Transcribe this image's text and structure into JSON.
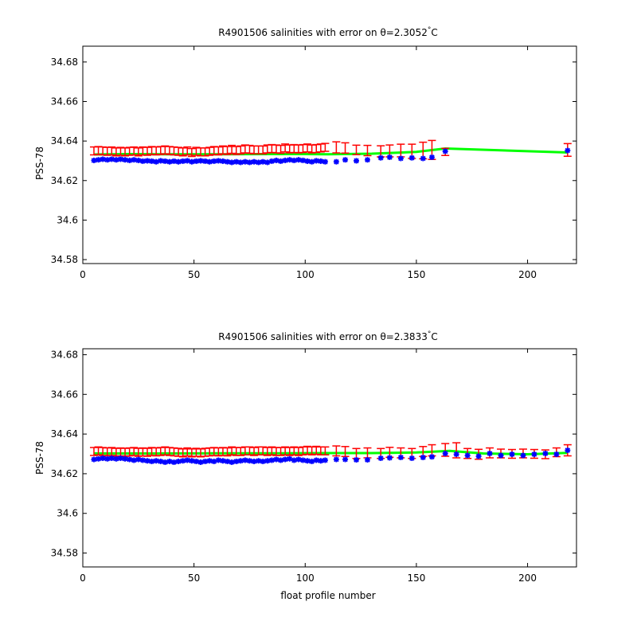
{
  "figure": {
    "xlabel": "float profile number"
  },
  "colors": {
    "mapped": "#ff0000",
    "float": "#0000ff",
    "calibrated": "#00ff00",
    "axis": "#000000"
  },
  "chart_data": [
    {
      "type": "scatter",
      "title": "R4901506 salinities with error on θ=2.3052°C",
      "title_main": "R4901506 salinities with error on θ=2.3052",
      "title_deg": "°",
      "title_unit": "C",
      "xlabel": "",
      "ylabel": "PSS-78",
      "xlim": [
        0,
        222
      ],
      "ylim": [
        34.578,
        34.688
      ],
      "xticks": [
        0,
        50,
        100,
        150,
        200
      ],
      "yticks": [
        34.58,
        34.6,
        34.62,
        34.64,
        34.66,
        34.68
      ],
      "ytick_labels": [
        "34.58",
        "34.6",
        "34.62",
        "34.64",
        "34.66",
        "34.68"
      ],
      "calibrated_line": {
        "x": [
          5,
          20,
          40,
          60,
          80,
          100,
          110,
          130,
          150,
          163,
          218
        ],
        "y": [
          34.6332,
          34.6334,
          34.6333,
          34.6333,
          34.6334,
          34.6334,
          34.6333,
          34.6336,
          34.6345,
          34.6362,
          34.6342
        ]
      },
      "series": [
        {
          "name_role": "mapped",
          "marker": "errorbar",
          "x": [
            5,
            7,
            9,
            11,
            13,
            15,
            17,
            19,
            21,
            23,
            25,
            27,
            29,
            31,
            33,
            35,
            37,
            39,
            41,
            43,
            45,
            47,
            49,
            51,
            53,
            55,
            57,
            59,
            61,
            63,
            65,
            67,
            69,
            71,
            73,
            75,
            77,
            79,
            81,
            83,
            85,
            87,
            89,
            91,
            93,
            95,
            97,
            99,
            101,
            103,
            105,
            107,
            109,
            114,
            118,
            123,
            128,
            134,
            138,
            143,
            148,
            153,
            157,
            163,
            218
          ],
          "y": [
            34.635,
            34.6352,
            34.635,
            34.6348,
            34.635,
            34.6345,
            34.6348,
            34.6345,
            34.6348,
            34.635,
            34.6345,
            34.635,
            34.6348,
            34.6352,
            34.635,
            34.6352,
            34.6355,
            34.6352,
            34.635,
            34.6348,
            34.6345,
            34.635,
            34.6342,
            34.6348,
            34.6345,
            34.6345,
            34.6348,
            34.6352,
            34.635,
            34.6355,
            34.6352,
            34.6358,
            34.6352,
            34.6355,
            34.636,
            34.6358,
            34.6355,
            34.6355,
            34.6355,
            34.636,
            34.6362,
            34.636,
            34.6358,
            34.6365,
            34.636,
            34.6362,
            34.636,
            34.6362,
            34.6365,
            34.636,
            34.6362,
            34.6365,
            34.6368,
            34.6368,
            34.6365,
            34.6355,
            34.6352,
            34.6348,
            34.635,
            34.6352,
            34.6348,
            34.6352,
            34.6355,
            34.6345,
            34.6355
          ],
          "err": [
            0.002,
            0.002,
            0.002,
            0.002,
            0.002,
            0.002,
            0.002,
            0.002,
            0.002,
            0.002,
            0.002,
            0.002,
            0.002,
            0.002,
            0.002,
            0.002,
            0.002,
            0.002,
            0.002,
            0.002,
            0.002,
            0.002,
            0.002,
            0.002,
            0.002,
            0.002,
            0.002,
            0.002,
            0.002,
            0.002,
            0.002,
            0.002,
            0.002,
            0.002,
            0.002,
            0.002,
            0.002,
            0.002,
            0.002,
            0.002,
            0.002,
            0.002,
            0.002,
            0.002,
            0.002,
            0.002,
            0.002,
            0.002,
            0.002,
            0.002,
            0.002,
            0.002,
            0.002,
            0.0028,
            0.0026,
            0.0024,
            0.0026,
            0.0028,
            0.003,
            0.0032,
            0.0036,
            0.0042,
            0.0048,
            0.0018,
            0.0032
          ]
        },
        {
          "name_role": "float",
          "marker": "star",
          "x": [
            5,
            7,
            9,
            11,
            13,
            15,
            17,
            19,
            21,
            23,
            25,
            27,
            29,
            31,
            33,
            35,
            37,
            39,
            41,
            43,
            45,
            47,
            49,
            51,
            53,
            55,
            57,
            59,
            61,
            63,
            65,
            67,
            69,
            71,
            73,
            75,
            77,
            79,
            81,
            83,
            85,
            87,
            89,
            91,
            93,
            95,
            97,
            99,
            101,
            103,
            105,
            107,
            109,
            114,
            118,
            123,
            128,
            134,
            138,
            143,
            148,
            153,
            157,
            163,
            218
          ],
          "y": [
            34.6302,
            34.6305,
            34.6308,
            34.6305,
            34.6308,
            34.6305,
            34.6308,
            34.6305,
            34.6302,
            34.6305,
            34.6302,
            34.6298,
            34.63,
            34.6298,
            34.6295,
            34.63,
            34.6298,
            34.6295,
            34.6298,
            34.6295,
            34.6298,
            34.63,
            34.6295,
            34.6298,
            34.63,
            34.6298,
            34.6295,
            34.6298,
            34.63,
            34.6298,
            34.6295,
            34.6292,
            34.6295,
            34.6292,
            34.6295,
            34.6292,
            34.6295,
            34.6292,
            34.6295,
            34.6292,
            34.6298,
            34.6302,
            34.6298,
            34.6302,
            34.6305,
            34.6302,
            34.6305,
            34.6302,
            34.6298,
            34.6295,
            34.63,
            34.6298,
            34.6295,
            34.6295,
            34.6305,
            34.63,
            34.6305,
            34.6315,
            34.6318,
            34.6312,
            34.6315,
            34.6312,
            34.6318,
            34.6348,
            34.6352
          ]
        }
      ]
    },
    {
      "type": "scatter",
      "title": "R4901506 salinities with error on θ=2.3833°C",
      "title_main": "R4901506 salinities with error on θ=2.3833",
      "title_deg": "°",
      "title_unit": "C",
      "xlabel": "float profile number",
      "ylabel": "PSS-78",
      "xlim": [
        0,
        222
      ],
      "ylim": [
        34.573,
        34.683
      ],
      "xticks": [
        0,
        50,
        100,
        150,
        200
      ],
      "yticks": [
        34.58,
        34.6,
        34.62,
        34.64,
        34.66,
        34.68
      ],
      "ytick_labels": [
        "34.58",
        "34.6",
        "34.62",
        "34.64",
        "34.66",
        "34.68"
      ],
      "calibrated_line": {
        "x": [
          5,
          30,
          60,
          90,
          110,
          130,
          150,
          165,
          180,
          200,
          218
        ],
        "y": [
          34.6302,
          34.6302,
          34.6303,
          34.6303,
          34.6304,
          34.6304,
          34.6307,
          34.6315,
          34.6302,
          34.6298,
          34.6305
        ]
      },
      "series": [
        {
          "name_role": "mapped",
          "marker": "errorbar",
          "x": [
            5,
            7,
            9,
            11,
            13,
            15,
            17,
            19,
            21,
            23,
            25,
            27,
            29,
            31,
            33,
            35,
            37,
            39,
            41,
            43,
            45,
            47,
            49,
            51,
            53,
            55,
            57,
            59,
            61,
            63,
            65,
            67,
            69,
            71,
            73,
            75,
            77,
            79,
            81,
            83,
            85,
            87,
            89,
            91,
            93,
            95,
            97,
            99,
            101,
            103,
            105,
            107,
            109,
            114,
            118,
            123,
            128,
            134,
            138,
            143,
            148,
            153,
            157,
            163,
            168,
            173,
            178,
            183,
            188,
            193,
            198,
            203,
            208,
            213,
            218
          ],
          "y": [
            34.6312,
            34.6315,
            34.6312,
            34.631,
            34.6312,
            34.6308,
            34.631,
            34.6308,
            34.631,
            34.6312,
            34.6308,
            34.631,
            34.6308,
            34.6312,
            34.631,
            34.6312,
            34.6315,
            34.6312,
            34.631,
            34.6308,
            34.6305,
            34.631,
            34.6305,
            34.6308,
            34.6305,
            34.6308,
            34.631,
            34.6312,
            34.631,
            34.6312,
            34.631,
            34.6315,
            34.6312,
            34.6312,
            34.6315,
            34.6315,
            34.6312,
            34.6315,
            34.6315,
            34.6312,
            34.6315,
            34.6312,
            34.6312,
            34.6315,
            34.6312,
            34.6315,
            34.6312,
            34.6315,
            34.6318,
            34.6315,
            34.6318,
            34.6315,
            34.6315,
            34.6315,
            34.6312,
            34.6302,
            34.6305,
            34.6302,
            34.6308,
            34.6305,
            34.6302,
            34.6312,
            34.6318,
            34.632,
            34.6318,
            34.6302,
            34.6298,
            34.6305,
            34.6302,
            34.63,
            34.6302,
            34.63,
            34.6298,
            34.6308,
            34.6318
          ],
          "err": [
            0.002,
            0.002,
            0.002,
            0.002,
            0.002,
            0.002,
            0.002,
            0.002,
            0.002,
            0.002,
            0.002,
            0.002,
            0.002,
            0.002,
            0.002,
            0.002,
            0.002,
            0.002,
            0.002,
            0.002,
            0.002,
            0.002,
            0.002,
            0.002,
            0.002,
            0.002,
            0.002,
            0.002,
            0.002,
            0.002,
            0.002,
            0.002,
            0.002,
            0.002,
            0.002,
            0.002,
            0.002,
            0.002,
            0.002,
            0.002,
            0.002,
            0.002,
            0.002,
            0.002,
            0.002,
            0.002,
            0.002,
            0.002,
            0.002,
            0.002,
            0.002,
            0.002,
            0.002,
            0.0025,
            0.0025,
            0.0025,
            0.0025,
            0.0025,
            0.0025,
            0.0025,
            0.0025,
            0.0025,
            0.0028,
            0.0032,
            0.0038,
            0.0025,
            0.0025,
            0.0025,
            0.0022,
            0.0022,
            0.0022,
            0.0022,
            0.0022,
            0.0022,
            0.0028
          ]
        },
        {
          "name_role": "float",
          "marker": "star",
          "x": [
            5,
            7,
            9,
            11,
            13,
            15,
            17,
            19,
            21,
            23,
            25,
            27,
            29,
            31,
            33,
            35,
            37,
            39,
            41,
            43,
            45,
            47,
            49,
            51,
            53,
            55,
            57,
            59,
            61,
            63,
            65,
            67,
            69,
            71,
            73,
            75,
            77,
            79,
            81,
            83,
            85,
            87,
            89,
            91,
            93,
            95,
            97,
            99,
            101,
            103,
            105,
            107,
            109,
            114,
            118,
            123,
            128,
            134,
            138,
            143,
            148,
            153,
            157,
            163,
            168,
            173,
            178,
            183,
            188,
            193,
            198,
            203,
            208,
            213,
            218
          ],
          "y": [
            34.6272,
            34.6275,
            34.6278,
            34.6275,
            34.6278,
            34.6275,
            34.6278,
            34.6275,
            34.6272,
            34.6268,
            34.6272,
            34.6268,
            34.6265,
            34.6262,
            34.6265,
            34.6262,
            34.6258,
            34.6262,
            34.6258,
            34.6262,
            34.6265,
            34.6268,
            34.6265,
            34.6262,
            34.6258,
            34.6262,
            34.6265,
            34.6262,
            34.6268,
            34.6265,
            34.6262,
            34.6258,
            34.6262,
            34.6265,
            34.6268,
            34.6265,
            34.6262,
            34.6265,
            34.6262,
            34.6265,
            34.6268,
            34.6272,
            34.6268,
            34.6272,
            34.6275,
            34.6268,
            34.6272,
            34.6268,
            34.6265,
            34.6262,
            34.6268,
            34.6265,
            34.6268,
            34.6272,
            34.6272,
            34.627,
            34.627,
            34.6278,
            34.628,
            34.6282,
            34.6278,
            34.6282,
            34.6285,
            34.6302,
            34.6298,
            34.6292,
            34.6288,
            34.6302,
            34.6292,
            34.6298,
            34.6292,
            34.6298,
            34.6302,
            34.6298,
            34.6318
          ]
        }
      ]
    }
  ]
}
